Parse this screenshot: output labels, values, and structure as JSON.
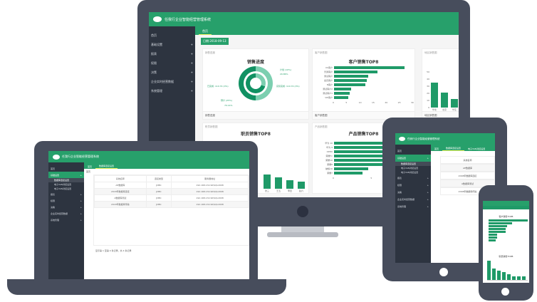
{
  "app": {
    "title": "任我行企业智能经营管理系统"
  },
  "sidebar": {
    "items": [
      {
        "label": "首页",
        "icon": "home-icon"
      },
      {
        "label": "基础设置",
        "icon": "settings-icon"
      },
      {
        "label": "报表",
        "icon": "report-icon"
      },
      {
        "label": "权限",
        "icon": "permission-icon"
      },
      {
        "label": "决策",
        "icon": "decision-icon"
      },
      {
        "label": "企业实时经营数据",
        "icon": "data-icon"
      },
      {
        "label": "系统管理",
        "icon": "system-icon"
      }
    ],
    "sub_items": [
      "数据库连接设置",
      "电子VAN对接设置",
      "电子VAN对接设置"
    ]
  },
  "tabs": {
    "home": "首页",
    "db": "数据库连接设置",
    "van": "电子VAN对接设置"
  },
  "monitor": {
    "date": "日期:2018-09-13",
    "cards": [
      {
        "caption": "销售进度",
        "title": "销售进度",
        "footer": "销售进度"
      },
      {
        "caption": "客户销售图",
        "title": "客户销售TOP8",
        "footer": "客户销售图"
      },
      {
        "caption": "地区销售图",
        "footer": "地区销售图"
      },
      {
        "caption": "职员销售图",
        "title": "职员销售TOP8"
      },
      {
        "caption": "产品销售图",
        "title": "产品销售TOP8"
      }
    ],
    "donut_labels": [
      "计划 (10%)",
      "29.86%",
      "实际完成: 110.74 (0%)",
      "已完成: 110.74 (0%)",
      "预计 (25%)",
      "70.14%"
    ]
  },
  "chart_data": [
    {
      "type": "bar",
      "title": "客户销售TOP8",
      "orientation": "horizontal",
      "categories": [
        "XX客户",
        "普通客户",
        "测试客户",
        "会员客户",
        "B客户",
        "测试客户2",
        "测试客户1",
        "VIP客户"
      ],
      "values": [
        27,
        16.5,
        13,
        12.5,
        12,
        6.5,
        6,
        5.5
      ],
      "xlim": [
        0,
        30
      ],
      "xticks": [
        "0",
        "5",
        "10",
        "15",
        "20",
        "25",
        "30"
      ]
    },
    {
      "type": "bar",
      "categories": [
        "华北",
        "北京",
        "华东"
      ],
      "values": [
        35,
        21,
        12
      ],
      "ylim": [
        0,
        54.59
      ],
      "yticks": [
        "0",
        "10",
        "20",
        "30",
        "40",
        "50",
        "54.59"
      ]
    },
    {
      "type": "bar",
      "title": "职员销售TOP8",
      "categories": [
        "张三",
        "王五",
        "李四",
        "赵六"
      ],
      "values": [
        10,
        8,
        6,
        5
      ]
    },
    {
      "type": "bar",
      "title": "产品销售TOP8",
      "orientation": "horizontal",
      "categories": [
        "华为 10",
        "华为 9",
        "OPPO",
        "荣耀7c",
        "荣耀10",
        "荣耀8",
        "魅族16",
        "荣耀7"
      ],
      "values": [
        20,
        19,
        15.5,
        12,
        10.5,
        10,
        6,
        5
      ],
      "xticks": [
        "0",
        "5",
        "10",
        "15"
      ]
    }
  ],
  "laptop": {
    "breadcrumb": "首页",
    "columns": [
      "系统名称",
      "连接类型",
      "服务器地址"
    ],
    "rows": [
      [
        "AE数据库",
        "JDBC",
        "192.168.132.90\\SQL2008"
      ],
      [
        "2018年数据库连接",
        "JDBC",
        "192.168.132.90\\SQL2008"
      ],
      [
        "A数据库测试",
        "JDBC",
        "192.168.132.90\\SQL2008"
      ],
      [
        "2018年数据库传输",
        "JDBC",
        "192.168.132.90\\SQL2008"
      ]
    ],
    "pager": "显示第 1 至第 4 条记录，共 4 条记录"
  },
  "tablet": {
    "rows": [
      "系统名称",
      "AE数据库",
      "2018年数据库连接",
      "A数据库测试",
      "2018年数据库传输"
    ]
  },
  "phone": {
    "chart1": "客户销售TOP8",
    "chart2": "职员销售TOP8",
    "phone_values1": [
      27,
      16,
      13,
      12,
      12,
      6,
      6,
      5
    ],
    "phone_values2": [
      10,
      6,
      5,
      4,
      3,
      2,
      2,
      2
    ]
  },
  "colors": {
    "brand": "#27a06b",
    "sidebar": "#2d3440",
    "bezel": "#474d5c"
  }
}
